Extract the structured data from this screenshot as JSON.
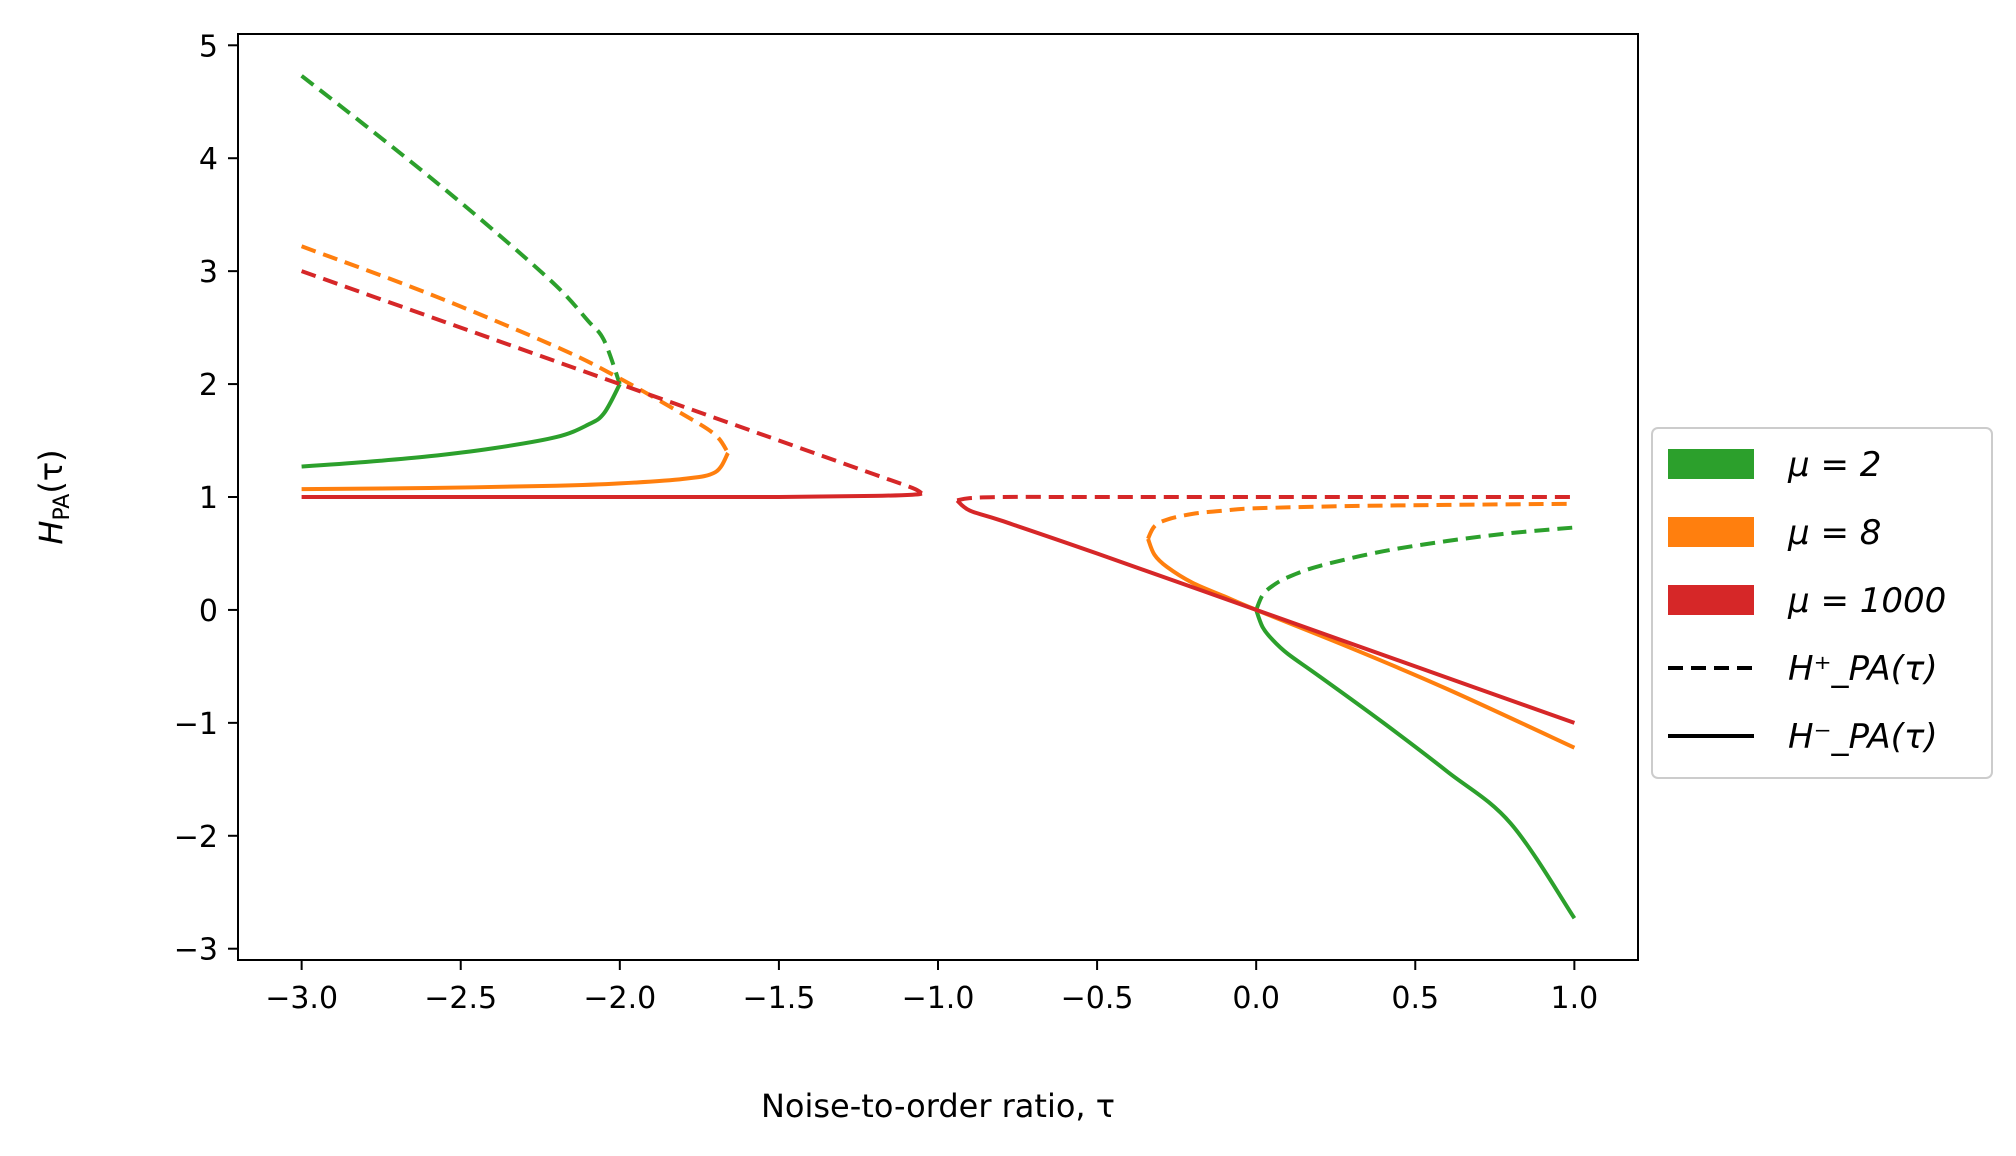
{
  "chart_data": {
    "type": "line",
    "xlabel": "Noise-to-order ratio, τ",
    "ylabel": "H_PA(τ)",
    "xlim": [
      -3.2,
      1.2
    ],
    "ylim": [
      -3.1,
      5.1
    ],
    "x_ticks": [
      -3.0,
      -2.5,
      -2.0,
      -1.5,
      -1.0,
      -0.5,
      0.0,
      0.5,
      1.0
    ],
    "x_tick_labels": [
      "−3.0",
      "−2.5",
      "−2.0",
      "−1.5",
      "−1.0",
      "−0.5",
      "0.0",
      "0.5",
      "1.0"
    ],
    "y_ticks": [
      -3,
      -2,
      -1,
      0,
      1,
      2,
      3,
      4,
      5
    ],
    "y_tick_labels": [
      "−3",
      "−2",
      "−1",
      "0",
      "1",
      "2",
      "3",
      "4",
      "5"
    ],
    "grid": false,
    "legend_position": "outside-right",
    "legend": [
      {
        "label": "μ = 2",
        "color": "#2ca02c",
        "kind": "patch"
      },
      {
        "label": "μ = 8",
        "color": "#ff7f0e",
        "kind": "patch"
      },
      {
        "label": "μ = 1000",
        "color": "#d62728",
        "kind": "patch"
      },
      {
        "label": "H⁺_PA(τ)",
        "color": "#000000",
        "kind": "dashed"
      },
      {
        "label": "H⁻_PA(τ)",
        "color": "#000000",
        "kind": "solid"
      }
    ],
    "series": [
      {
        "mu": 2,
        "branch": "plus",
        "color": "#2ca02c",
        "style": "dashed",
        "segment": "left",
        "x": [
          -3.0,
          -2.8,
          -2.6,
          -2.4,
          -2.2,
          -2.1,
          -2.05,
          -2.0
        ],
        "y": [
          4.73,
          4.29,
          3.84,
          3.37,
          2.87,
          2.56,
          2.39,
          2.0
        ]
      },
      {
        "mu": 2,
        "branch": "minus",
        "color": "#2ca02c",
        "style": "solid",
        "segment": "left",
        "x": [
          -3.0,
          -2.8,
          -2.6,
          -2.4,
          -2.2,
          -2.1,
          -2.05,
          -2.0
        ],
        "y": [
          1.27,
          1.31,
          1.36,
          1.43,
          1.53,
          1.64,
          1.74,
          2.0
        ]
      },
      {
        "mu": 2,
        "branch": "plus",
        "color": "#2ca02c",
        "style": "dashed",
        "segment": "right",
        "x": [
          0.0,
          0.02,
          0.05,
          0.1,
          0.2,
          0.4,
          0.6,
          0.8,
          1.0
        ],
        "y": [
          0.0,
          0.13,
          0.21,
          0.29,
          0.39,
          0.52,
          0.61,
          0.68,
          0.73
        ]
      },
      {
        "mu": 2,
        "branch": "minus",
        "color": "#2ca02c",
        "style": "solid",
        "segment": "right",
        "x": [
          0.0,
          0.02,
          0.05,
          0.1,
          0.2,
          0.4,
          0.6,
          0.8,
          1.0
        ],
        "y": [
          0.0,
          -0.15,
          -0.26,
          -0.39,
          -0.59,
          -1.0,
          -1.43,
          -1.89,
          -2.73
        ]
      },
      {
        "mu": 8,
        "branch": "plus",
        "color": "#ff7f0e",
        "style": "dashed",
        "segment": "left",
        "x": [
          -3.0,
          -2.6,
          -2.2,
          -2.0,
          -1.8,
          -1.7,
          -1.66
        ],
        "y": [
          3.22,
          2.8,
          2.33,
          2.05,
          1.73,
          1.55,
          1.39
        ]
      },
      {
        "mu": 8,
        "branch": "minus",
        "color": "#ff7f0e",
        "style": "solid",
        "segment": "left",
        "x": [
          -3.0,
          -2.6,
          -2.2,
          -2.0,
          -1.8,
          -1.7,
          -1.66
        ],
        "y": [
          1.07,
          1.08,
          1.1,
          1.12,
          1.16,
          1.22,
          1.39
        ]
      },
      {
        "mu": 8,
        "branch": "plus",
        "color": "#ff7f0e",
        "style": "dashed",
        "segment": "right",
        "x": [
          -0.34,
          -0.32,
          -0.28,
          -0.2,
          -0.1,
          0.0,
          0.3,
          0.6,
          1.0
        ],
        "y": [
          0.63,
          0.74,
          0.8,
          0.85,
          0.88,
          0.9,
          0.92,
          0.93,
          0.94
        ]
      },
      {
        "mu": 8,
        "branch": "minus",
        "color": "#ff7f0e",
        "style": "solid",
        "segment": "right",
        "x": [
          -0.34,
          -0.32,
          -0.28,
          -0.2,
          -0.1,
          0.0,
          0.3,
          0.6,
          1.0
        ],
        "y": [
          0.63,
          0.49,
          0.38,
          0.24,
          0.12,
          0.0,
          -0.34,
          -0.7,
          -1.22
        ]
      },
      {
        "mu": 1000,
        "branch": "plus",
        "color": "#d62728",
        "style": "dashed",
        "segment": "left",
        "x": [
          -3.0,
          -2.5,
          -2.0,
          -1.5,
          -1.2,
          -1.08,
          -1.05
        ],
        "y": [
          3.0,
          2.5,
          2.0,
          1.5,
          1.2,
          1.08,
          1.03
        ]
      },
      {
        "mu": 1000,
        "branch": "minus",
        "color": "#d62728",
        "style": "solid",
        "segment": "left",
        "x": [
          -3.0,
          -2.5,
          -2.0,
          -1.5,
          -1.2,
          -1.08,
          -1.05
        ],
        "y": [
          1.0,
          1.0,
          1.0,
          1.0,
          1.01,
          1.02,
          1.03
        ]
      },
      {
        "mu": 1000,
        "branch": "plus",
        "color": "#d62728",
        "style": "dashed",
        "segment": "right",
        "x": [
          -0.94,
          -0.9,
          -0.8,
          -0.5,
          0.0,
          0.5,
          1.0
        ],
        "y": [
          0.97,
          0.99,
          1.0,
          1.0,
          1.0,
          1.0,
          1.0
        ]
      },
      {
        "mu": 1000,
        "branch": "minus",
        "color": "#d62728",
        "style": "solid",
        "segment": "right",
        "x": [
          -0.94,
          -0.9,
          -0.8,
          -0.5,
          0.0,
          0.5,
          1.0
        ],
        "y": [
          0.97,
          0.88,
          0.79,
          0.5,
          0.0,
          -0.5,
          -1.0
        ]
      }
    ]
  }
}
